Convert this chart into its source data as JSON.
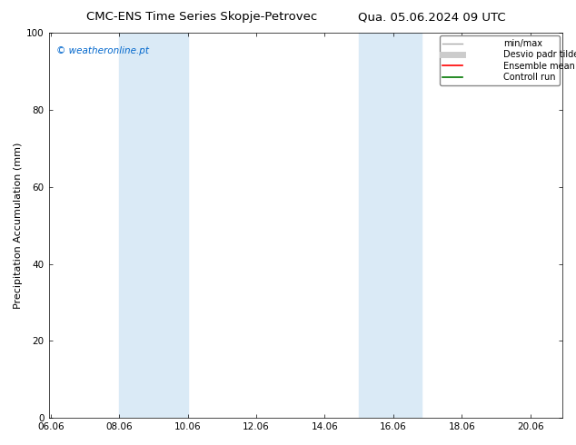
{
  "title_left": "CMC-ENS Time Series Skopje-Petrovec",
  "title_right": "Qua. 05.06.2024 09 UTC",
  "ylabel": "Precipitation Accumulation (mm)",
  "watermark": "© weatheronline.pt",
  "watermark_color": "#0066cc",
  "xlim": [
    6.0,
    21.0
  ],
  "ylim": [
    0,
    100
  ],
  "xticks": [
    6.06,
    8.06,
    10.06,
    12.06,
    14.06,
    16.06,
    18.06,
    20.06
  ],
  "xtick_labels": [
    "06.06",
    "08.06",
    "10.06",
    "12.06",
    "14.06",
    "16.06",
    "18.06",
    "20.06"
  ],
  "yticks": [
    0,
    20,
    40,
    60,
    80,
    100
  ],
  "shaded_regions": [
    {
      "xmin": 8.06,
      "xmax": 10.06,
      "color": "#daeaf6"
    },
    {
      "xmin": 15.06,
      "xmax": 16.9,
      "color": "#daeaf6"
    }
  ],
  "legend_entries": [
    {
      "label": "min/max",
      "color": "#aaaaaa",
      "lw": 1.0
    },
    {
      "label": "Desvio padr tilde;o",
      "color": "#cccccc",
      "lw": 5
    },
    {
      "label": "Ensemble mean run",
      "color": "#ff0000",
      "lw": 1.2
    },
    {
      "label": "Controll run",
      "color": "#007700",
      "lw": 1.2
    }
  ],
  "background_color": "#ffffff",
  "title_fontsize": 9.5,
  "ylabel_fontsize": 8,
  "tick_fontsize": 7.5,
  "watermark_fontsize": 7.5,
  "legend_fontsize": 7
}
